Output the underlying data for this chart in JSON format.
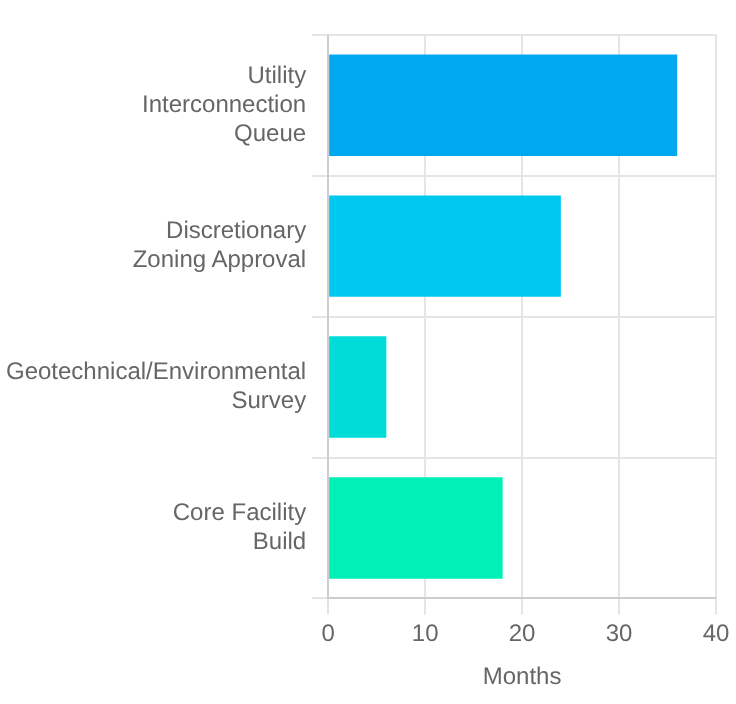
{
  "chart_data": {
    "type": "bar",
    "orientation": "horizontal",
    "xlabel": "Months",
    "categories": [
      "Utility Interconnection Queue",
      "Discretionary Zoning Approval",
      "Geotechnical/Environmental Survey",
      "Core Facility Build"
    ],
    "values": [
      36,
      24,
      6,
      18
    ],
    "colors": [
      "#00a8f0",
      "#00c8f0",
      "#00dcd8",
      "#00f0b8"
    ],
    "xlim": [
      0,
      40
    ],
    "xticks": [
      0,
      10,
      20,
      30,
      40
    ],
    "grid": true,
    "legend": false
  }
}
